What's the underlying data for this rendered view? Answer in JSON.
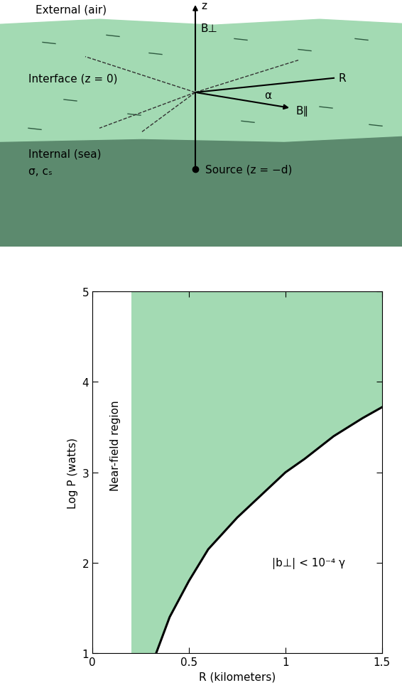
{
  "diagram": {
    "labels": {
      "z": "z",
      "b_perp": "B⊥",
      "external": "External (air)",
      "interface": "Interface (z = 0)",
      "r": "R",
      "alpha": "α",
      "b_par": "B∥",
      "internal": "Internal (sea)",
      "params": "σ, cₛ",
      "source": "Source (z = −d)"
    }
  },
  "chart_data": {
    "type": "line",
    "x_label": "R (kilometers)",
    "y_label": "Log P (watts)",
    "x": [
      0.33,
      0.4,
      0.5,
      0.6,
      0.75,
      0.9,
      1.0,
      1.1,
      1.25,
      1.4,
      1.5
    ],
    "values": [
      1.0,
      1.4,
      1.8,
      2.15,
      2.5,
      2.8,
      3.0,
      3.15,
      3.4,
      3.6,
      3.72
    ],
    "color": "#000000",
    "near_field_R": 0.2,
    "annotations": [
      "Near-field region",
      "|b⊥| < 10⁻⁴ γ"
    ],
    "xlim": [
      0,
      1.5
    ],
    "xticks": [
      0,
      0.5,
      1,
      1.5
    ],
    "ylim": [
      1,
      5
    ],
    "yticks": [
      1,
      2,
      3,
      4,
      5
    ]
  }
}
